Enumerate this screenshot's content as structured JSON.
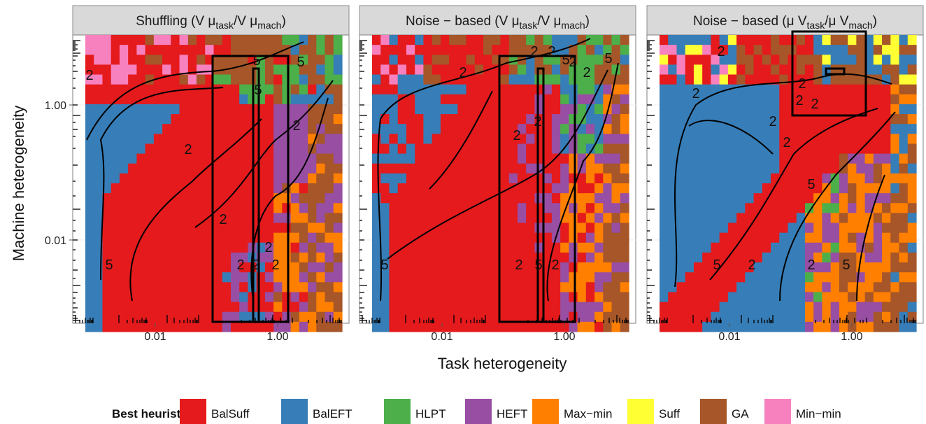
{
  "chart_data": [
    {
      "type": "heatmap",
      "panel_title": "Shuffling (V μ_task/V μ_mach)",
      "strip_parts": [
        "Shuffling (V μ",
        "task",
        "/V μ",
        "mach",
        ")"
      ],
      "xlabel": "Task heterogeneity",
      "ylabel": "Machine heterogeneity",
      "x_scale": "log",
      "y_scale": "log",
      "x_ticks": [
        "0.01",
        "1.00"
      ],
      "y_ticks": [
        "0.01",
        "1.00"
      ],
      "dominant_regions": [
        "BalEFT upper-left band",
        "BalSuff diagonal and lower region",
        "HEFT/Max-min/GA right columns",
        "Min-min/BalSuff/GA top rows"
      ],
      "contour_labels": [
        "5",
        "2",
        "2",
        "5",
        "2",
        "2",
        "2",
        "2",
        "2",
        "2",
        "5",
        "5"
      ]
    },
    {
      "type": "heatmap",
      "panel_title": "Noise−based (V μ_task/V μ_mach)",
      "strip_parts": [
        "Noise − based (V μ",
        "task",
        "/V μ",
        "mach",
        ")"
      ],
      "xlabel": "Task heterogeneity",
      "ylabel": "Machine heterogeneity",
      "x_scale": "log",
      "y_scale": "log",
      "x_ticks": [
        "0.01",
        "1.00"
      ],
      "y_ticks": [
        "0.01",
        "1.00"
      ],
      "contour_labels": [
        "2",
        "2",
        "2",
        "2",
        "2",
        "5",
        "2",
        "5",
        "2",
        "5",
        "2",
        "2",
        "5"
      ]
    },
    {
      "type": "heatmap",
      "panel_title": "Noise−based (μ V_task/μ V_mach)",
      "strip_parts": [
        "Noise − based (μ V",
        "task",
        "/μ V",
        "mach",
        ")"
      ],
      "xlabel": "Task heterogeneity",
      "ylabel": "Machine heterogeneity",
      "x_scale": "log",
      "y_scale": "log",
      "x_ticks": [
        "0.01",
        "1.00"
      ],
      "y_ticks": [
        "0.01",
        "1.00"
      ],
      "contour_labels": [
        "2",
        "2",
        "2",
        "2",
        "2",
        "2",
        "2",
        "5",
        "5",
        "2",
        "2",
        "5"
      ]
    }
  ],
  "axes": {
    "xlabel": "Task heterogeneity",
    "ylabel": "Machine heterogeneity"
  },
  "legend": {
    "title": "Best heuristic",
    "placement": "bottom",
    "items": [
      {
        "label": "BalSuff",
        "color": "#E41A1C"
      },
      {
        "label": "BalEFT",
        "color": "#377EB8"
      },
      {
        "label": "HLPT",
        "color": "#4DAF4A"
      },
      {
        "label": "HEFT",
        "color": "#984EA3"
      },
      {
        "label": "Max−min",
        "color": "#FF7F00"
      },
      {
        "label": "Suff",
        "color": "#FFFF33"
      },
      {
        "label": "GA",
        "color": "#A65628"
      },
      {
        "label": "Min−min",
        "color": "#F781BF"
      }
    ]
  }
}
